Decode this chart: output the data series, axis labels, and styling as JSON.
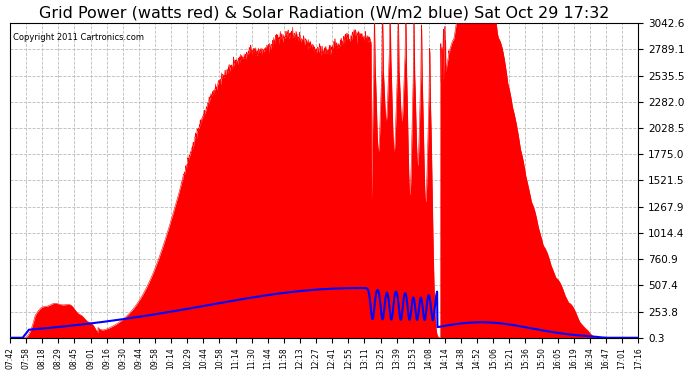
{
  "title": "Grid Power (watts red) & Solar Radiation (W/m2 blue) Sat Oct 29 17:32",
  "copyright": "Copyright 2011 Cartronics.com",
  "background_color": "#ffffff",
  "plot_bg_color": "#ffffff",
  "grid_color": "#bbbbbb",
  "yticks": [
    0.3,
    253.8,
    507.4,
    760.9,
    1014.4,
    1267.9,
    1521.5,
    1775.0,
    2028.5,
    2282.0,
    2535.5,
    2789.1,
    3042.6
  ],
  "ymin": 0.3,
  "ymax": 3042.6,
  "xtick_labels": [
    "07:42",
    "07:58",
    "08:18",
    "08:29",
    "08:45",
    "09:01",
    "09:16",
    "09:30",
    "09:44",
    "09:58",
    "10:14",
    "10:29",
    "10:44",
    "10:58",
    "11:14",
    "11:30",
    "11:44",
    "11:58",
    "12:13",
    "12:27",
    "12:41",
    "12:55",
    "13:11",
    "13:25",
    "13:39",
    "13:53",
    "14:08",
    "14:14",
    "14:38",
    "14:52",
    "15:06",
    "15:21",
    "15:36",
    "15:50",
    "16:05",
    "16:19",
    "16:34",
    "16:47",
    "17:01",
    "17:16"
  ],
  "red_color": "#ff0000",
  "blue_color": "#0000ff",
  "title_fontsize": 11.5
}
